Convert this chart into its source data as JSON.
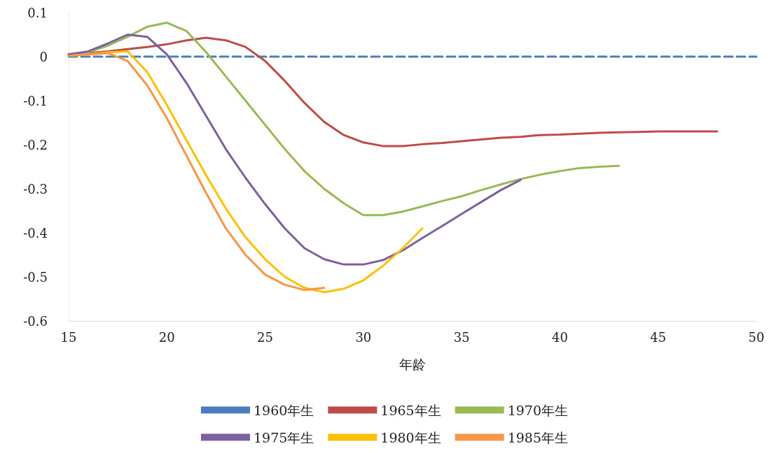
{
  "chart_data": {
    "type": "line",
    "xlabel": "年龄",
    "xlim": [
      15,
      50
    ],
    "xticks": [
      15,
      20,
      25,
      30,
      35,
      40,
      45,
      50
    ],
    "ylim": [
      -0.6,
      0.1
    ],
    "yticks": [
      -0.6,
      -0.5,
      -0.4,
      -0.3,
      -0.2,
      -0.1,
      0,
      0.1
    ],
    "grid": false,
    "legend": "bottom",
    "marker": "none",
    "series": [
      {
        "name": "1960年生",
        "color": "#4a7ebb",
        "line_style": "dashed",
        "x": [
          15,
          16,
          17,
          18,
          19,
          20,
          21,
          22,
          23,
          24,
          25,
          26,
          27,
          28,
          29,
          30,
          31,
          32,
          33,
          34,
          35,
          36,
          37,
          38,
          39,
          40,
          41,
          42,
          43,
          44,
          45,
          46,
          47,
          48,
          49,
          50
        ],
        "values": [
          0,
          0,
          0,
          0,
          0,
          0,
          0,
          0,
          0,
          0,
          0,
          0,
          0,
          0,
          0,
          0,
          0,
          0,
          0,
          0,
          0,
          0,
          0,
          0,
          0,
          0,
          0,
          0,
          0,
          0,
          0,
          0,
          0,
          0,
          0,
          0
        ]
      },
      {
        "name": "1965年生",
        "color": "#be4b48",
        "line_style": "solid",
        "x": [
          15,
          16,
          17,
          18,
          19,
          20,
          21,
          22,
          23,
          24,
          25,
          26,
          27,
          28,
          29,
          30,
          31,
          32,
          33,
          34,
          35,
          36,
          37,
          38,
          39,
          40,
          41,
          42,
          43,
          44,
          45,
          46,
          47,
          48
        ],
        "values": [
          0.005,
          0.008,
          0.012,
          0.017,
          0.022,
          0.028,
          0.037,
          0.043,
          0.037,
          0.022,
          -0.01,
          -0.055,
          -0.105,
          -0.148,
          -0.178,
          -0.195,
          -0.203,
          -0.203,
          -0.199,
          -0.196,
          -0.192,
          -0.188,
          -0.184,
          -0.182,
          -0.178,
          -0.177,
          -0.175,
          -0.173,
          -0.172,
          -0.171,
          -0.17,
          -0.17,
          -0.17,
          -0.17
        ]
      },
      {
        "name": "1970年生",
        "color": "#98b954",
        "line_style": "solid",
        "x": [
          15,
          16,
          17,
          18,
          19,
          20,
          21,
          22,
          23,
          24,
          25,
          26,
          27,
          28,
          29,
          30,
          31,
          32,
          33,
          34,
          35,
          36,
          37,
          38,
          39,
          40,
          41,
          42,
          43
        ],
        "values": [
          0.003,
          0.01,
          0.025,
          0.045,
          0.068,
          0.077,
          0.058,
          0.01,
          -0.045,
          -0.1,
          -0.155,
          -0.21,
          -0.26,
          -0.3,
          -0.333,
          -0.36,
          -0.36,
          -0.352,
          -0.34,
          -0.328,
          -0.317,
          -0.303,
          -0.29,
          -0.278,
          -0.268,
          -0.26,
          -0.253,
          -0.25,
          -0.248
        ]
      },
      {
        "name": "1975年生",
        "color": "#7d60a0",
        "line_style": "solid",
        "x": [
          15,
          16,
          17,
          18,
          19,
          20,
          21,
          22,
          23,
          24,
          25,
          26,
          27,
          28,
          29,
          30,
          31,
          32,
          33,
          34,
          35,
          36,
          37,
          38
        ],
        "values": [
          0.005,
          0.012,
          0.03,
          0.05,
          0.045,
          0.005,
          -0.06,
          -0.135,
          -0.21,
          -0.275,
          -0.335,
          -0.39,
          -0.435,
          -0.46,
          -0.472,
          -0.472,
          -0.462,
          -0.44,
          -0.412,
          -0.385,
          -0.357,
          -0.33,
          -0.303,
          -0.28
        ]
      },
      {
        "name": "1980年生",
        "color": "#ffc000",
        "line_style": "solid",
        "x": [
          15,
          16,
          17,
          18,
          19,
          20,
          21,
          22,
          23,
          24,
          25,
          26,
          27,
          28,
          29,
          30,
          31,
          32,
          33
        ],
        "values": [
          0.002,
          0.005,
          0.01,
          0.012,
          -0.035,
          -0.11,
          -0.19,
          -0.27,
          -0.345,
          -0.41,
          -0.46,
          -0.5,
          -0.525,
          -0.535,
          -0.527,
          -0.508,
          -0.475,
          -0.435,
          -0.39
        ]
      },
      {
        "name": "1985年生",
        "color": "#f79646",
        "line_style": "solid",
        "x": [
          15,
          16,
          17,
          18,
          19,
          20,
          21,
          22,
          23,
          24,
          25,
          26,
          27,
          28
        ],
        "values": [
          0.002,
          0.005,
          0.008,
          -0.01,
          -0.065,
          -0.14,
          -0.225,
          -0.31,
          -0.39,
          -0.45,
          -0.495,
          -0.518,
          -0.53,
          -0.525
        ]
      }
    ]
  }
}
